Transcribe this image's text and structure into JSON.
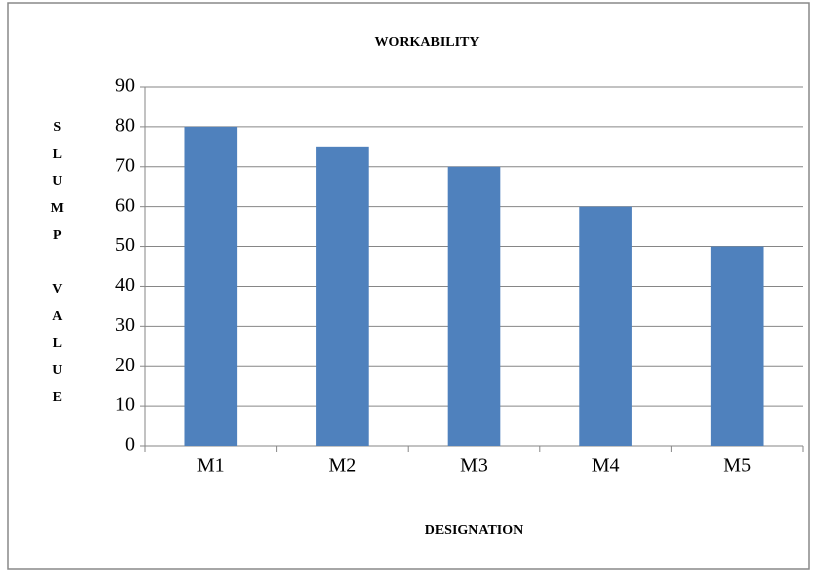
{
  "chart_data": {
    "type": "bar",
    "title": "WORKABILITY",
    "xlabel": "DESIGNATION",
    "ylabel": "SLUMP VALUE",
    "categories": [
      "M1",
      "M2",
      "M3",
      "M4",
      "M5"
    ],
    "values": [
      80,
      75,
      70,
      60,
      50
    ],
    "color": "#4f81bd",
    "ylim": [
      0,
      90
    ],
    "yticks": [
      0,
      10,
      20,
      30,
      40,
      50,
      60,
      70,
      80,
      90
    ],
    "grid": true
  }
}
